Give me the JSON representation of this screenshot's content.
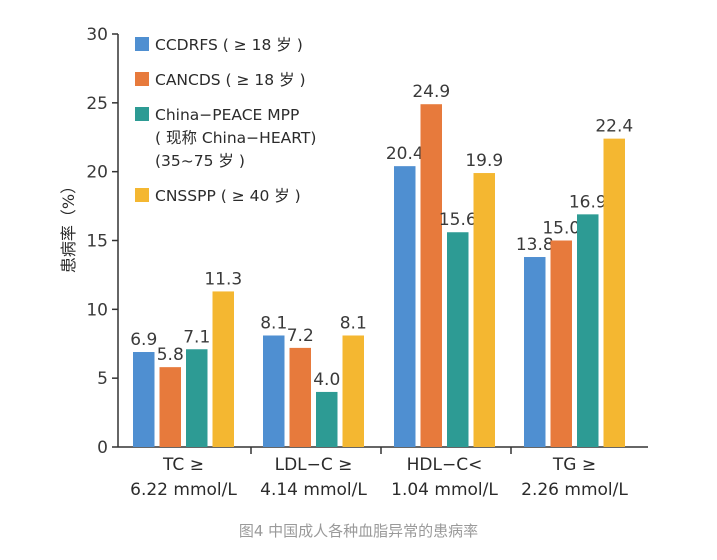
{
  "caption": "图4 中国成人各种血脂异常的患病率",
  "chart_data": {
    "type": "bar",
    "ylabel": "患病率（%）",
    "ylim": [
      0,
      30
    ],
    "yticks": [
      "0",
      "5",
      "10",
      "15",
      "20",
      "25",
      "30"
    ],
    "categories": [
      [
        "TC ≥",
        "6.22 mmol/L"
      ],
      [
        "LDL−C ≥",
        "4.14 mmol/L"
      ],
      [
        "HDL−C<",
        "1.04 mmol/L"
      ],
      [
        "TG ≥",
        "2.26 mmol/L"
      ]
    ],
    "series": [
      {
        "name": "CCDRFS",
        "legend": [
          "CCDRFS ( ≥ 18 岁 )"
        ],
        "color": "#4f8fd1",
        "values": [
          6.9,
          8.1,
          20.4,
          13.8
        ],
        "labels": [
          "6.9",
          "8.1",
          "20.4",
          "13.8"
        ]
      },
      {
        "name": "CANCDS",
        "legend": [
          "CANCDS ( ≥ 18 岁 )"
        ],
        "color": "#e77a3c",
        "values": [
          5.8,
          7.2,
          24.9,
          15.0
        ],
        "labels": [
          "5.8",
          "7.2",
          "24.9",
          "15.0"
        ]
      },
      {
        "name": "China-PEACE MPP",
        "legend": [
          "China−PEACE MPP",
          "( 现称 China−HEART)",
          "(35~75 岁 )"
        ],
        "color": "#2d9b94",
        "values": [
          7.1,
          4.0,
          15.6,
          16.9
        ],
        "labels": [
          "7.1",
          "4.0",
          "15.6",
          "16.9"
        ]
      },
      {
        "name": "CNSSPP",
        "legend": [
          "CNSSPP ( ≥ 40 岁 )"
        ],
        "color": "#f4b731",
        "values": [
          11.3,
          8.1,
          19.9,
          22.4
        ],
        "labels": [
          "11.3",
          "8.1",
          "19.9",
          "22.4"
        ]
      }
    ]
  }
}
